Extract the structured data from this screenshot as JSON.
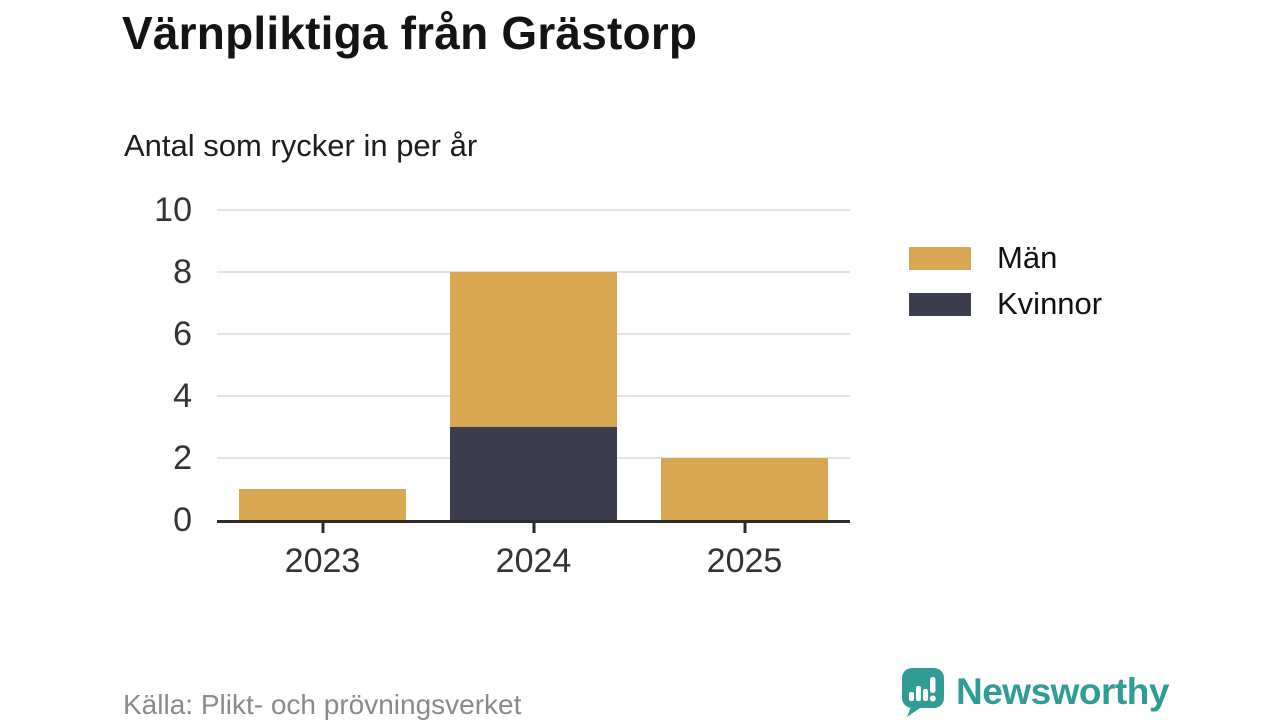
{
  "chart_data": {
    "type": "bar",
    "stacked": true,
    "title": "Värnpliktiga från Grästorp",
    "subtitle": "Antal som rycker in per år",
    "categories": [
      "2023",
      "2024",
      "2025"
    ],
    "series": [
      {
        "name": "Män",
        "color": "#d7a851",
        "values": [
          1,
          5,
          2
        ]
      },
      {
        "name": "Kvinnor",
        "color": "#3c3d4e",
        "values": [
          0,
          3,
          0
        ]
      }
    ],
    "stack_order_bottom_to_top": [
      "Kvinnor",
      "Män"
    ],
    "totals": [
      1,
      8,
      2
    ],
    "ylim": [
      0,
      10
    ],
    "yticks": [
      0,
      2,
      4,
      6,
      8,
      10
    ],
    "grid": "horizontal",
    "legend_position": "right",
    "axis_color": "#2b2b2b",
    "gridline_color": "#e3e3e3"
  },
  "footer": {
    "source": "Källa: Plikt- och prövningsverket",
    "brand": "Newsworthy",
    "brand_color": "#2f9c95"
  }
}
